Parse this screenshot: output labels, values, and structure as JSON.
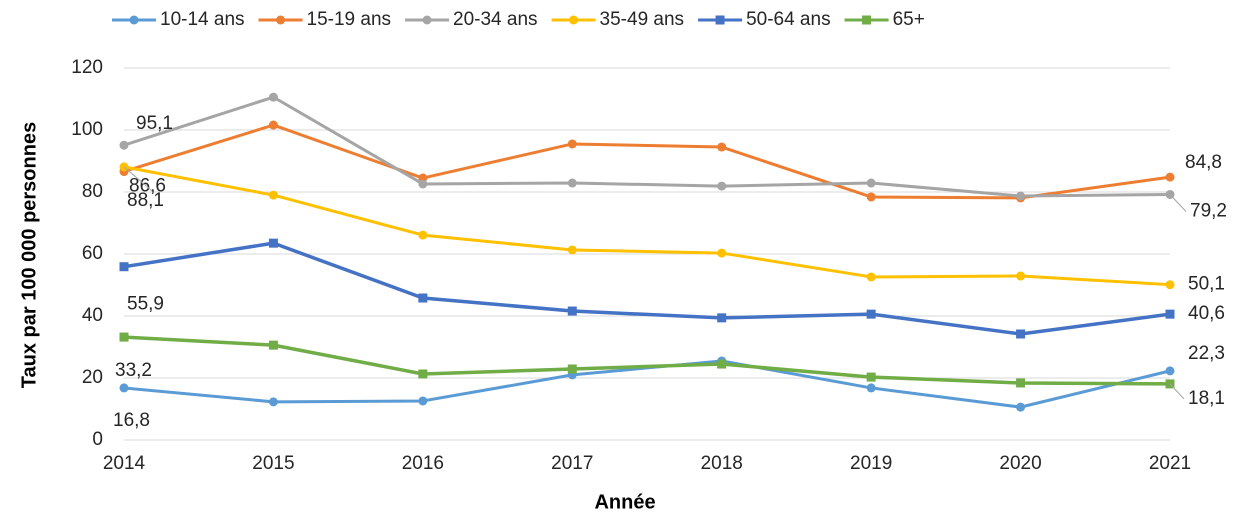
{
  "chart_data": {
    "type": "line",
    "y_label": "Taux par 100 000 personnes",
    "x_label": "Année",
    "categories": [
      "2014",
      "2015",
      "2016",
      "2017",
      "2018",
      "2019",
      "2020",
      "2021"
    ],
    "ylim": [
      0,
      120
    ],
    "yticks": [
      0,
      20,
      40,
      60,
      80,
      100,
      120
    ],
    "grid": true,
    "legend": "top",
    "series": [
      {
        "name": "10-14 ans",
        "color": "#5b9bd5",
        "marker": "circle",
        "values": [
          16.8,
          12.3,
          12.6,
          21.0,
          25.5,
          16.8,
          10.6,
          22.3
        ],
        "value_labels": [
          "16,8",
          null,
          null,
          null,
          null,
          null,
          null,
          "22,3"
        ]
      },
      {
        "name": "15-19 ans",
        "color": "#ed7d31",
        "marker": "circle",
        "values": [
          86.6,
          101.6,
          84.5,
          95.5,
          94.5,
          78.4,
          78.1,
          84.8
        ],
        "value_labels": [
          "86,6",
          null,
          null,
          null,
          null,
          null,
          null,
          "84,8"
        ]
      },
      {
        "name": "20-34 ans",
        "color": "#a5a5a5",
        "marker": "circle",
        "values": [
          95.1,
          110.6,
          82.6,
          82.9,
          81.9,
          82.9,
          78.7,
          79.2
        ],
        "value_labels": [
          "95,1",
          null,
          null,
          null,
          null,
          null,
          null,
          "79,2"
        ]
      },
      {
        "name": "35-49 ans",
        "color": "#ffc000",
        "marker": "circle",
        "values": [
          88.1,
          79.0,
          66.1,
          61.3,
          60.3,
          52.6,
          52.9,
          50.1
        ],
        "value_labels": [
          "88,1",
          null,
          null,
          null,
          null,
          null,
          null,
          "50,1"
        ]
      },
      {
        "name": "50-64 ans",
        "color": "#4472c4",
        "marker": "square",
        "values": [
          55.9,
          63.5,
          45.8,
          41.6,
          39.4,
          40.6,
          34.2,
          40.6
        ],
        "value_labels": [
          "55,9",
          null,
          null,
          null,
          null,
          null,
          null,
          "40,6"
        ]
      },
      {
        "name": "65+",
        "color": "#70ad47",
        "marker": "square",
        "values": [
          33.2,
          30.6,
          21.3,
          22.9,
          24.5,
          20.3,
          18.4,
          18.1
        ],
        "value_labels": [
          "33,2",
          null,
          null,
          null,
          null,
          null,
          null,
          "18,1"
        ]
      }
    ]
  }
}
